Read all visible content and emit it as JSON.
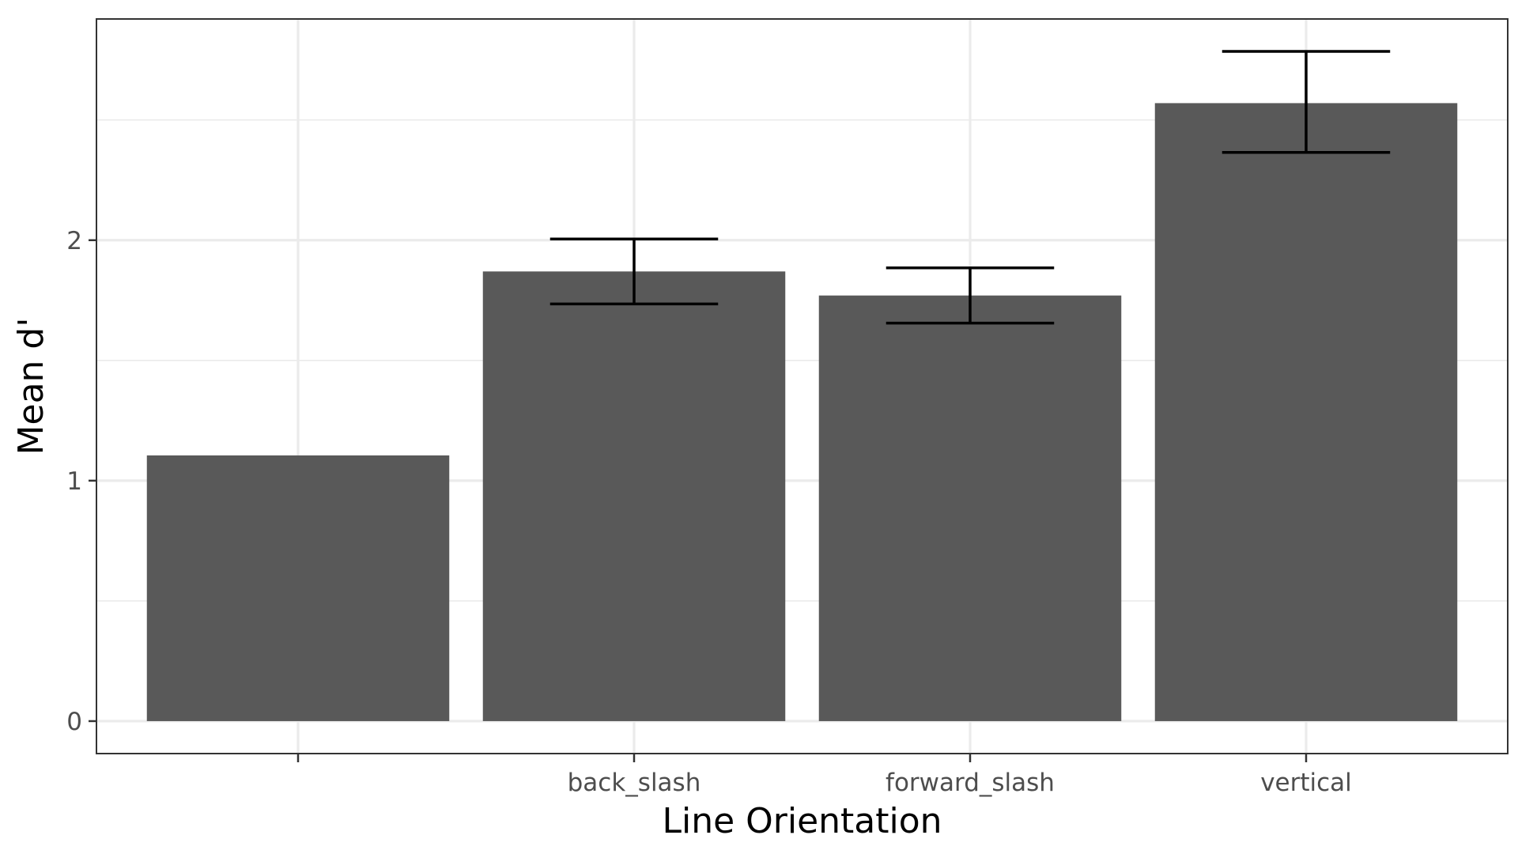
{
  "chart_data": {
    "type": "bar",
    "title": "",
    "xlabel": "Line Orientation",
    "ylabel": "Mean d'",
    "categories": [
      "",
      "back_slash",
      "forward_slash",
      "vertical"
    ],
    "values": [
      1.105,
      1.87,
      1.77,
      2.57
    ],
    "error_bars": [
      null,
      {
        "low": 1.735,
        "high": 2.005
      },
      {
        "low": 1.655,
        "high": 1.885
      },
      {
        "low": 2.365,
        "high": 2.785
      }
    ],
    "ylim": [
      -0.135,
      2.92
    ],
    "yticks": [
      0,
      1,
      2
    ],
    "ytick_labels": [
      "0",
      "1",
      "2"
    ],
    "grid": true,
    "bar_color": "#595959",
    "grid_color": "#ebebeb",
    "errorbar_color": "#000000",
    "panel_border_color": "#333333"
  }
}
